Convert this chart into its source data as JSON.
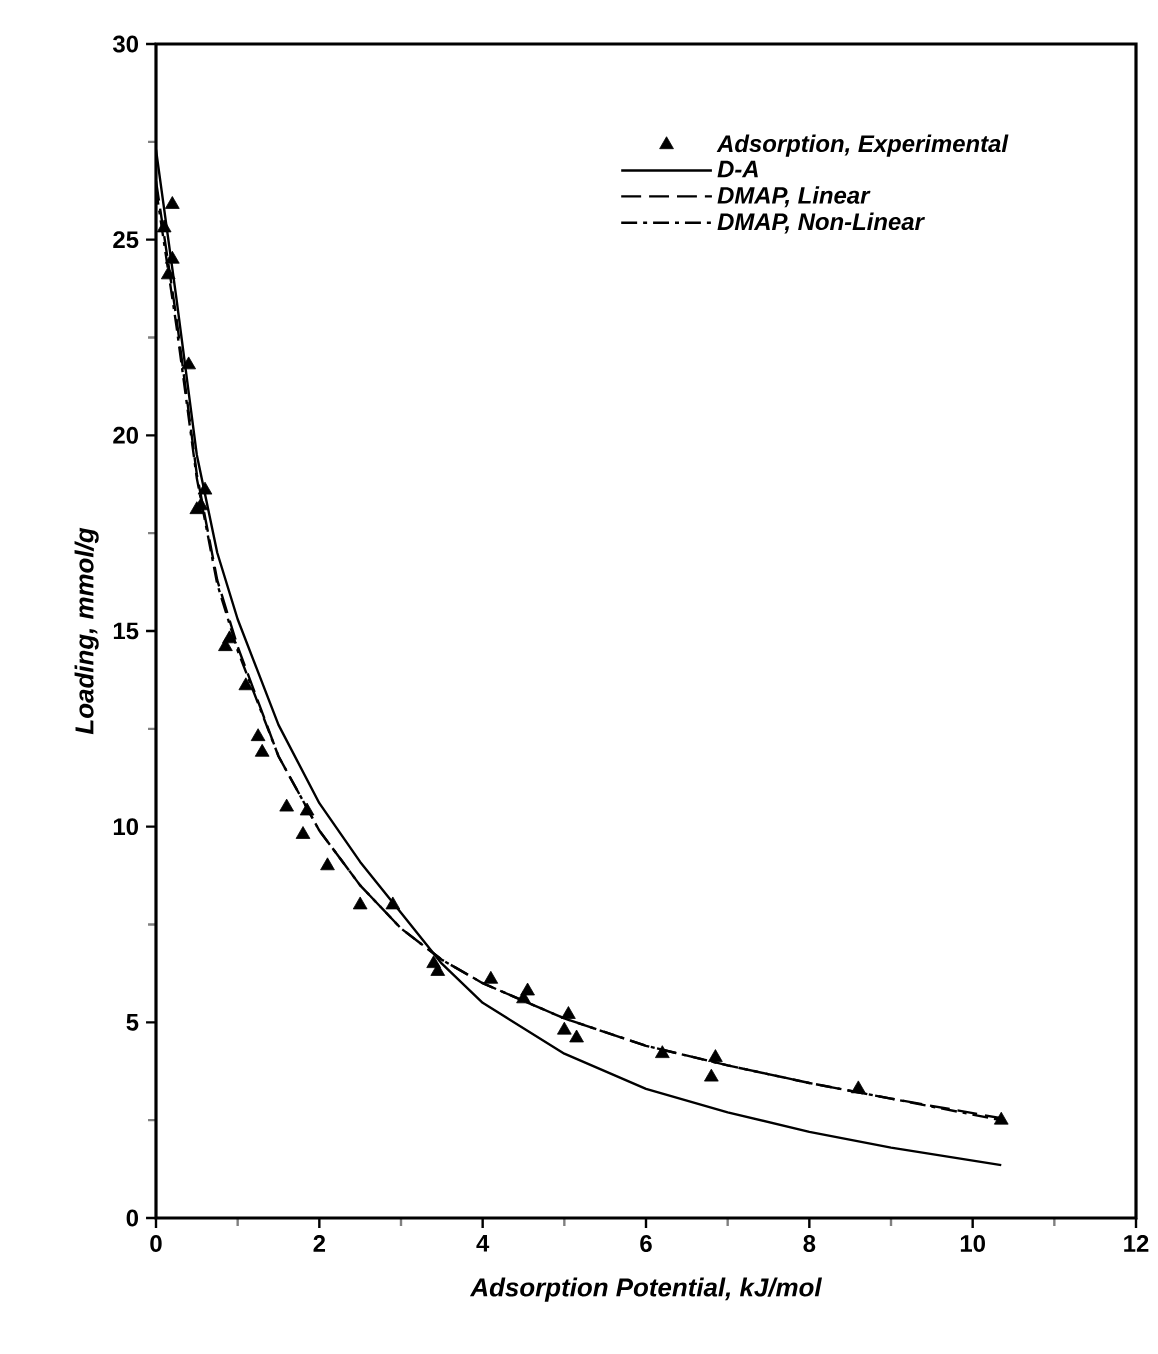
{
  "chart_data": {
    "type": "line",
    "xlabel": "Adsorption Potential, kJ/mol",
    "ylabel": "Loading, mmol/g",
    "xlim": [
      0,
      12
    ],
    "ylim": [
      0,
      30
    ],
    "xticks": [
      0,
      2,
      4,
      6,
      8,
      10,
      12
    ],
    "yticks": [
      0,
      5,
      10,
      15,
      20,
      25,
      30
    ],
    "grid": false,
    "legend": "top right",
    "series": [
      {
        "name": "Adsorption, Experimental",
        "type": "scatter",
        "marker": "triangle",
        "color": "#000000",
        "x": [
          0.1,
          0.2,
          0.2,
          0.15,
          0.4,
          0.5,
          0.6,
          0.55,
          0.85,
          0.9,
          1.1,
          1.25,
          1.3,
          1.6,
          1.8,
          1.85,
          2.1,
          2.5,
          2.9,
          3.4,
          3.45,
          4.1,
          4.5,
          4.55,
          5.0,
          5.05,
          5.15,
          6.2,
          6.8,
          6.85,
          8.6,
          10.35
        ],
        "values": [
          25.3,
          25.9,
          24.5,
          24.1,
          21.8,
          18.1,
          18.6,
          18.2,
          14.6,
          14.8,
          13.6,
          12.3,
          11.9,
          10.5,
          9.8,
          10.4,
          9.0,
          8.0,
          8.0,
          6.5,
          6.3,
          6.1,
          5.6,
          5.8,
          4.8,
          5.2,
          4.6,
          4.2,
          3.6,
          4.1,
          3.3,
          2.5
        ]
      },
      {
        "name": "D-A",
        "marker": "none",
        "line_style": "solid",
        "color": "#000000",
        "x": [
          0,
          0.25,
          0.5,
          0.75,
          1,
          1.5,
          2,
          2.5,
          3,
          3.5,
          4,
          5,
          6,
          7,
          8,
          9,
          10.35
        ],
        "values": [
          27.3,
          23.5,
          19.5,
          17.0,
          15.3,
          12.6,
          10.6,
          9.1,
          7.8,
          6.5,
          5.5,
          4.2,
          3.3,
          2.7,
          2.2,
          1.8,
          1.35
        ]
      },
      {
        "name": "DMAP, Linear",
        "marker": "none",
        "line_style": "dashed",
        "color": "#000000",
        "x": [
          0,
          0.25,
          0.5,
          0.75,
          1,
          1.5,
          2,
          2.5,
          3,
          3.5,
          4,
          5,
          6,
          7,
          8,
          9,
          10.35
        ],
        "values": [
          26.5,
          23.0,
          19.0,
          16.3,
          14.6,
          11.8,
          9.9,
          8.5,
          7.4,
          6.6,
          6.0,
          5.1,
          4.4,
          3.9,
          3.45,
          3.05,
          2.55
        ]
      },
      {
        "name": "DMAP, Non-Linear",
        "marker": "none",
        "line_style": "dashdot",
        "color": "#000000",
        "x": [
          0,
          0.25,
          0.5,
          0.75,
          1,
          1.5,
          2,
          2.5,
          3,
          3.5,
          4,
          5,
          6,
          7,
          8,
          9,
          10.35
        ],
        "values": [
          26.3,
          22.8,
          18.9,
          16.2,
          14.5,
          11.8,
          9.9,
          8.5,
          7.4,
          6.6,
          6.0,
          5.1,
          4.4,
          3.9,
          3.45,
          3.05,
          2.5
        ]
      }
    ]
  }
}
